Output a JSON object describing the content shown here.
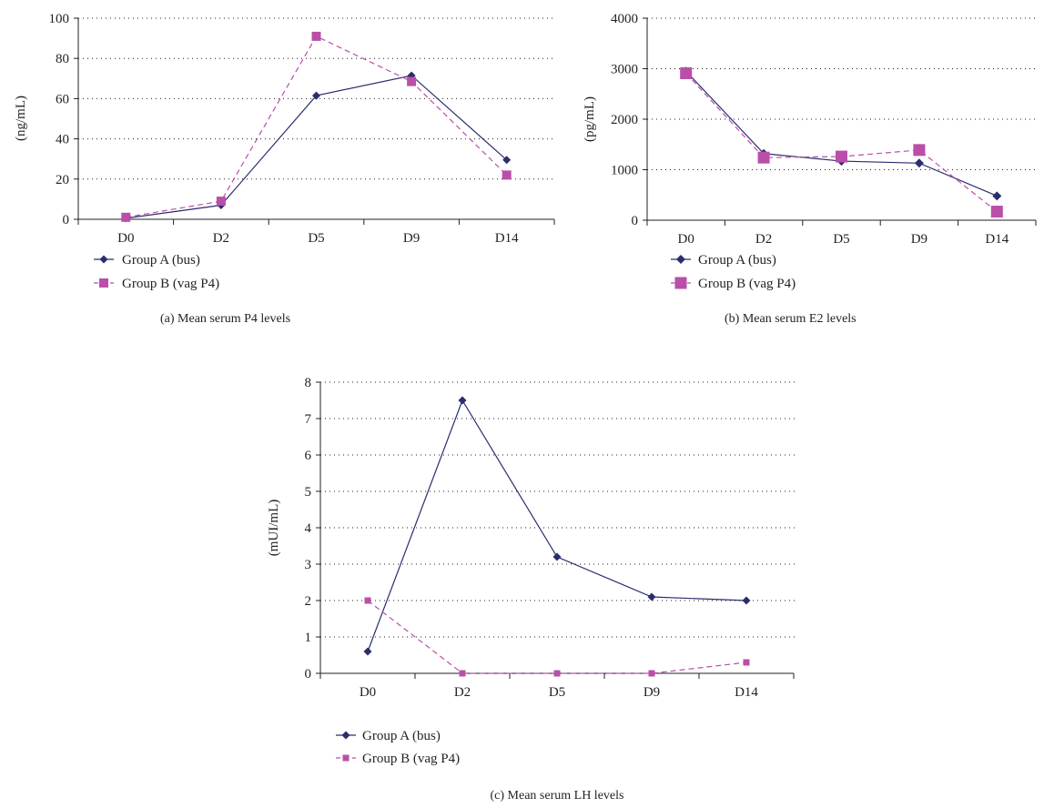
{
  "chart_data": [
    {
      "type": "line",
      "categories": [
        "D0",
        "D2",
        "D5",
        "D9",
        "D14"
      ],
      "ylabel": "(ng/mL)",
      "ylim": [
        0,
        100
      ],
      "yticks": [
        0,
        20,
        40,
        60,
        80,
        100
      ],
      "grid": true,
      "legend_position": "bottom-left",
      "caption": "(a)  Mean serum P4 levels",
      "series": [
        {
          "name": "Group A (bus)",
          "values": [
            0.5,
            7,
            61.5,
            71.5,
            29.5
          ],
          "color": "#2b2d6e",
          "marker": "diamond",
          "line": "solid"
        },
        {
          "name": "Group B (vag P4)",
          "values": [
            1,
            9,
            91,
            68.5,
            22
          ],
          "color": "#b94fa9",
          "marker": "square",
          "line": "dashed"
        }
      ]
    },
    {
      "type": "line",
      "categories": [
        "D0",
        "D2",
        "D5",
        "D9",
        "D14"
      ],
      "ylabel": "(pg/mL)",
      "ylim": [
        0,
        4000
      ],
      "yticks": [
        0,
        1000,
        2000,
        3000,
        4000
      ],
      "grid": true,
      "legend_position": "bottom-left",
      "caption": "(b)  Mean serum E2 levels",
      "series": [
        {
          "name": "Group A (bus)",
          "values": [
            2950,
            1320,
            1170,
            1130,
            480
          ],
          "color": "#2b2d6e",
          "marker": "diamond",
          "line": "solid"
        },
        {
          "name": "Group B (vag P4)",
          "values": [
            2910,
            1240,
            1260,
            1390,
            170
          ],
          "color": "#b94fa9",
          "marker": "square",
          "line": "dashed"
        }
      ]
    },
    {
      "type": "line",
      "categories": [
        "D0",
        "D2",
        "D5",
        "D9",
        "D14"
      ],
      "ylabel": "(mUI/mL)",
      "ylim": [
        0,
        8
      ],
      "yticks": [
        0,
        1,
        2,
        3,
        4,
        5,
        6,
        7,
        8
      ],
      "grid": true,
      "legend_position": "bottom-left",
      "caption": "(c)  Mean serum LH levels",
      "series": [
        {
          "name": "Group A (bus)",
          "values": [
            0.6,
            7.5,
            3.2,
            2.1,
            2.0
          ],
          "color": "#2b2d6e",
          "marker": "diamond",
          "line": "solid"
        },
        {
          "name": "Group B (vag P4)",
          "values": [
            2.0,
            0,
            0,
            0,
            0.3
          ],
          "color": "#b94fa9",
          "marker": "square",
          "line": "dashed"
        }
      ]
    }
  ]
}
